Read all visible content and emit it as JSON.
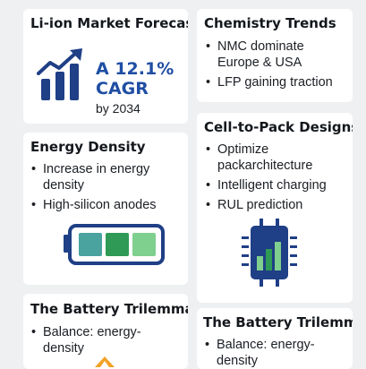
{
  "cards": {
    "market": {
      "title": "Li-ion Market Forecast",
      "cagr_line1": "A 12.1%",
      "cagr_line2": "CAGR",
      "cagr_line3": "by 2034",
      "icon": "bar-chart-growth-icon"
    },
    "chemistry": {
      "title": "Chemistry Trends",
      "bullets": [
        "NMC dominate Europe & USA",
        "LFP gaining traction"
      ]
    },
    "energy": {
      "title": "Energy Density",
      "bullets": [
        "Increase in energy density",
        "High-silicon anodes"
      ],
      "icon": "battery-icon"
    },
    "ctp": {
      "title": "Cell-to-Pack Designs",
      "bullets": [
        "Optimize packarchitecture",
        "Intelligent charging",
        "RUL prediction"
      ],
      "icon": "battery-chip-icon"
    },
    "trilemma_left": {
      "title": "The Battery Trilemma",
      "bullets": [
        "Balance: energy-density"
      ],
      "icon": "warning-triangle-icon"
    },
    "trilemma_right": {
      "title": "The Battery Trilemma",
      "bullets": [
        "Balance: energy-density"
      ]
    }
  },
  "colors": {
    "navy": "#1f3f86",
    "blue": "#1f4ea3",
    "green_dark": "#2e9a56",
    "green_light": "#7fcf8e",
    "teal": "#4ba3a0",
    "orange": "#f2a227"
  }
}
